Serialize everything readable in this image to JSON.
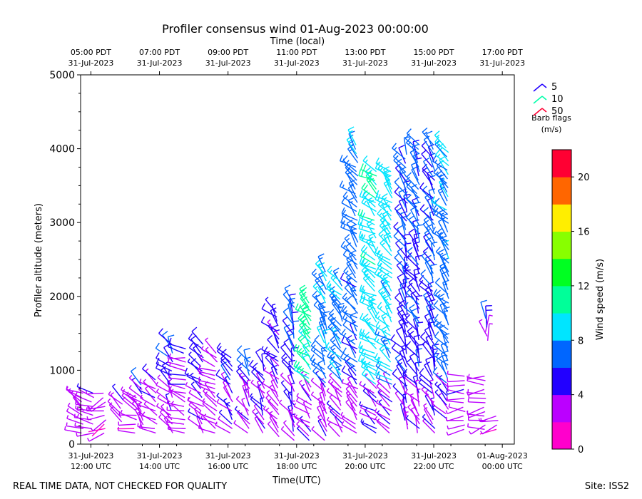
{
  "chart_data": {
    "type": "wind-barb-profile",
    "title": "Profiler consensus wind 01-Aug-2023 00:00:00",
    "top_axis_title": "Time (local)",
    "xlabel": "Time(UTC)",
    "ylabel": "Profiler altitude (meters)",
    "ylim": [
      0,
      5000
    ],
    "xlim_hours_utc": [
      11.7,
      24.35
    ],
    "y_ticks": [
      {
        "value": 0,
        "label": "0"
      },
      {
        "value": 1000,
        "label": "1000"
      },
      {
        "value": 2000,
        "label": "2000"
      },
      {
        "value": 3000,
        "label": "3000"
      },
      {
        "value": 4000,
        "label": "4000"
      },
      {
        "value": 5000,
        "label": "5000"
      }
    ],
    "x_ticks_utc": [
      {
        "hour": 12,
        "date": "31-Jul-2023",
        "time": "12:00 UTC"
      },
      {
        "hour": 14,
        "date": "31-Jul-2023",
        "time": "14:00 UTC"
      },
      {
        "hour": 16,
        "date": "31-Jul-2023",
        "time": "16:00 UTC"
      },
      {
        "hour": 18,
        "date": "31-Jul-2023",
        "time": "18:00 UTC"
      },
      {
        "hour": 20,
        "date": "31-Jul-2023",
        "time": "20:00 UTC"
      },
      {
        "hour": 22,
        "date": "31-Jul-2023",
        "time": "22:00 UTC"
      },
      {
        "hour": 24,
        "date": "01-Aug-2023",
        "time": "00:00 UTC"
      }
    ],
    "x_ticks_local": [
      {
        "hour": 12,
        "time": "05:00 PDT",
        "date": "31-Jul-2023"
      },
      {
        "hour": 14,
        "time": "07:00 PDT",
        "date": "31-Jul-2023"
      },
      {
        "hour": 16,
        "time": "09:00 PDT",
        "date": "31-Jul-2023"
      },
      {
        "hour": 18,
        "time": "11:00 PDT",
        "date": "31-Jul-2023"
      },
      {
        "hour": 20,
        "time": "13:00 PDT",
        "date": "31-Jul-2023"
      },
      {
        "hour": 22,
        "time": "15:00 PDT",
        "date": "31-Jul-2023"
      },
      {
        "hour": 24,
        "time": "17:00 PDT",
        "date": "31-Jul-2023"
      }
    ],
    "legend": {
      "entries": [
        {
          "label": "5",
          "color": "#2200ff"
        },
        {
          "label": "10",
          "color": "#00ffaa"
        },
        {
          "label": "50",
          "color": "#ff0033"
        }
      ],
      "caption_line1": "Barb flags",
      "caption_line2": "(m/s)"
    },
    "colorbar": {
      "label": "Wind speed (m/s)",
      "min": 0,
      "max": 22,
      "ticks": [
        0,
        4,
        8,
        12,
        16,
        20
      ],
      "colors": [
        "#ff00cc",
        "#bb00ff",
        "#2200ff",
        "#0066ff",
        "#00e5ff",
        "#00ff99",
        "#00ff22",
        "#88ff00",
        "#ffee00",
        "#ff6600",
        "#ff0033"
      ]
    },
    "profiles": [
      {
        "t": 11.75,
        "h0": 150,
        "h1": 700,
        "speed": 3.0,
        "dir": 300
      },
      {
        "t": 12.05,
        "h0": 150,
        "h1": 700,
        "speed": 2.6,
        "dir": 280
      },
      {
        "t": 12.4,
        "h0": 150,
        "h1": 700,
        "speed": 2.0,
        "dir": 250
      },
      {
        "t": 12.9,
        "h0": 300,
        "h1": 650,
        "speed": 4.5,
        "dir": 330
      },
      {
        "t": 13.3,
        "h0": 150,
        "h1": 650,
        "speed": 2.4,
        "dir": 290
      },
      {
        "t": 13.5,
        "h0": 200,
        "h1": 850,
        "speed": 4.5,
        "dir": 320
      },
      {
        "t": 13.9,
        "h0": 150,
        "h1": 900,
        "speed": 2.6,
        "dir": 300
      },
      {
        "t": 14.35,
        "h0": 150,
        "h1": 1350,
        "speed": 4.6,
        "dir": 320
      },
      {
        "t": 14.75,
        "h0": 150,
        "h1": 1300,
        "speed": 2.8,
        "dir": 290
      },
      {
        "t": 15.25,
        "h0": 150,
        "h1": 1350,
        "speed": 4.0,
        "dir": 315
      },
      {
        "t": 15.65,
        "h0": 150,
        "h1": 1250,
        "speed": 2.4,
        "dir": 300
      },
      {
        "t": 16.1,
        "h0": 150,
        "h1": 1200,
        "speed": 4.6,
        "dir": 320
      },
      {
        "t": 16.6,
        "h0": 150,
        "h1": 1150,
        "speed": 4.8,
        "dir": 330
      },
      {
        "t": 17.05,
        "h0": 150,
        "h1": 1100,
        "speed": 4.8,
        "dir": 330
      },
      {
        "t": 17.45,
        "h0": 100,
        "h1": 1800,
        "speed": 3.5,
        "dir": 320
      },
      {
        "t": 17.9,
        "h0": 50,
        "h1": 1950,
        "speed": 4.6,
        "dir": 335
      },
      {
        "t": 18.4,
        "h0": 50,
        "h1": 1950,
        "speed": 9.5,
        "dir": 315
      },
      {
        "t": 18.85,
        "h0": 50,
        "h1": 2350,
        "speed": 6.5,
        "dir": 325
      },
      {
        "t": 19.3,
        "h0": 100,
        "h1": 2200,
        "speed": 6.8,
        "dir": 320
      },
      {
        "t": 19.75,
        "h0": 150,
        "h1": 4100,
        "speed": 6.0,
        "dir": 315
      },
      {
        "t": 20.3,
        "h0": 150,
        "h1": 3700,
        "speed": 8.5,
        "dir": 310
      },
      {
        "t": 20.75,
        "h0": 150,
        "h1": 3700,
        "speed": 7.8,
        "dir": 315
      },
      {
        "t": 21.2,
        "h0": 200,
        "h1": 3950,
        "speed": 5.0,
        "dir": 330
      },
      {
        "t": 21.55,
        "h0": 150,
        "h1": 4050,
        "speed": 5.0,
        "dir": 330
      },
      {
        "t": 22.0,
        "h0": 150,
        "h1": 4100,
        "speed": 5.0,
        "dir": 330
      },
      {
        "t": 22.4,
        "h0": 350,
        "h1": 4050,
        "speed": 6.5,
        "dir": 320
      },
      {
        "t": 22.9,
        "h0": 200,
        "h1": 950,
        "speed": 2.5,
        "dir": 270
      },
      {
        "t": 23.5,
        "h0": 200,
        "h1": 950,
        "speed": 2.6,
        "dir": 260
      },
      {
        "t": 23.85,
        "h0": 200,
        "h1": 400,
        "speed": 2.0,
        "dir": 250
      },
      {
        "t": 23.55,
        "h0": 1400,
        "h1": 1700,
        "speed": 4.0,
        "dir": 350
      }
    ]
  },
  "footer": {
    "disclaimer": "REAL TIME DATA, NOT CHECKED FOR QUALITY",
    "site": "Site: ISS2"
  }
}
